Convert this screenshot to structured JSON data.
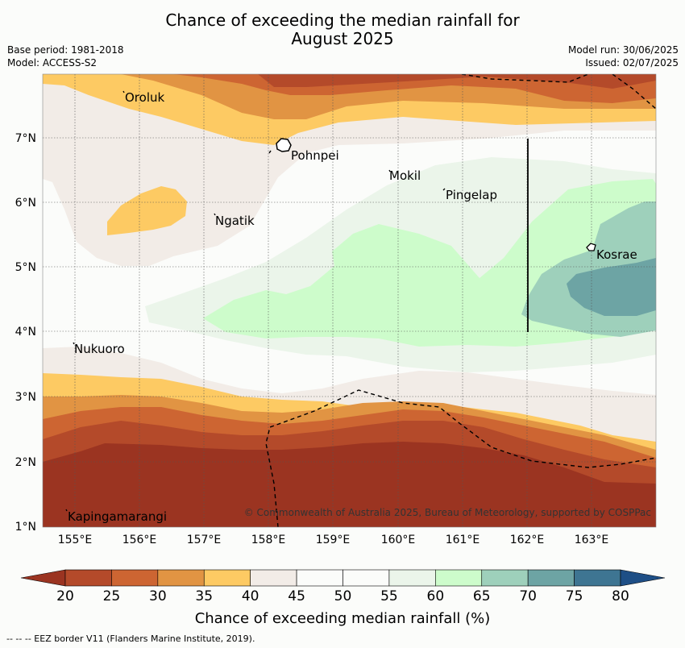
{
  "header": {
    "title_line1": "Chance of exceeding the median rainfall for",
    "title_line2": "August 2025",
    "base_period": "Base period: 1981-2018",
    "model": "Model: ACCESS-S2",
    "model_run": "Model run: 30/06/2025",
    "issued": "Issued: 02/07/2025"
  },
  "map": {
    "lat_labels": [
      "7°N",
      "6°N",
      "5°N",
      "4°N",
      "3°N",
      "2°N",
      "1°N"
    ],
    "lon_labels": [
      "155°E",
      "156°E",
      "157°E",
      "158°E",
      "159°E",
      "160°E",
      "161°E",
      "162°E",
      "163°E"
    ],
    "places": [
      "Oroluk",
      "Pohnpei",
      "Mokil",
      "Pingelap",
      "Ngatik",
      "Kosrae",
      "Nukuoro",
      "Kapingamarangi"
    ],
    "credit": "© Commonwealth of Australia 2025, Bureau of Meteorology, supported by COSPPac"
  },
  "colorbar": {
    "ticks": [
      "20",
      "25",
      "30",
      "35",
      "40",
      "45",
      "50",
      "55",
      "60",
      "65",
      "70",
      "75",
      "80"
    ],
    "colors": [
      "#9b3421",
      "#b44a2a",
      "#cd6532",
      "#e19443",
      "#fdca63",
      "#f2ece7",
      "#fbfcfa",
      "#fbfcfa",
      "#ebf5ea",
      "#cdfccb",
      "#9ed0bb",
      "#6da4a4",
      "#3e7592",
      "#1e4f86"
    ],
    "label": "Chance of exceeding median rainfall (%)"
  },
  "footer": {
    "legend": "--  --  -- EEZ border V11 (Flanders Marine Institute, 2019)."
  }
}
